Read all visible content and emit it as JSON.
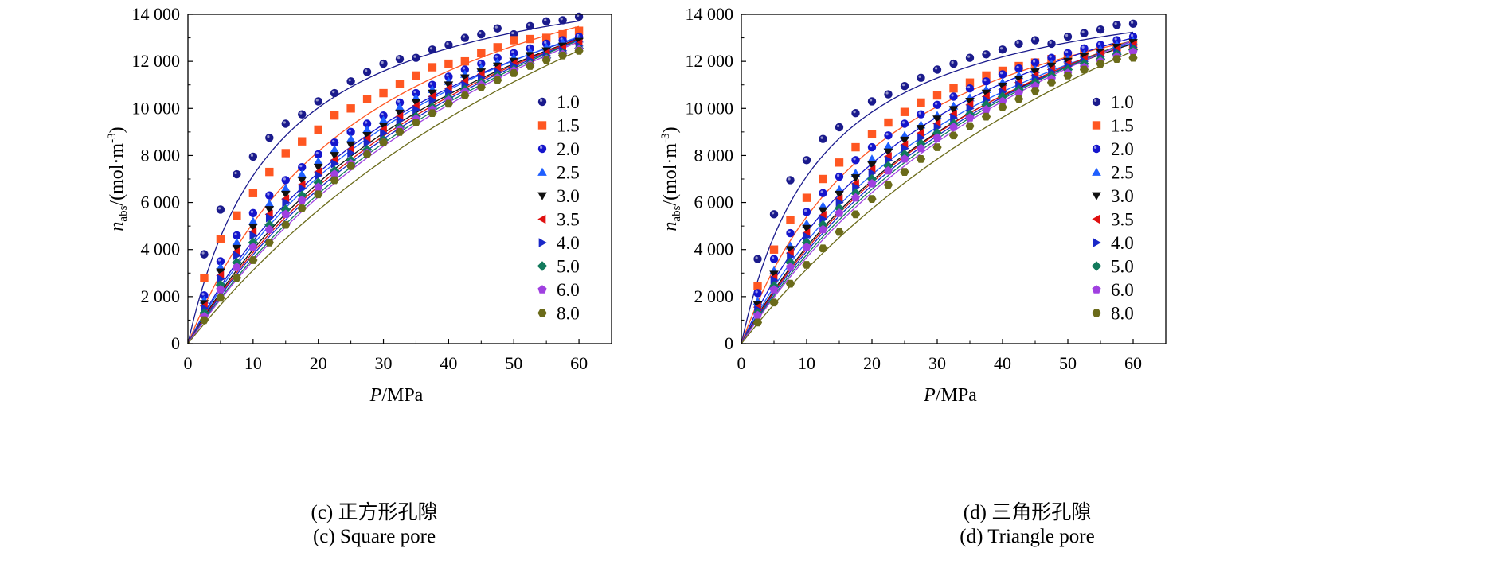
{
  "figure": {
    "left_panel": {
      "caption_zh": "(c) 正方形孔隙",
      "caption_en": "(c) Square pore"
    },
    "right_panel": {
      "caption_zh": "(d) 三角形孔隙",
      "caption_en": "(d) Triangle pore"
    }
  },
  "chart_data": [
    {
      "type": "scatter",
      "panel": "(c) Square pore",
      "xlabel": "P/MPa",
      "ylabel": "n_abs/(mol·m^-3)",
      "xlim": [
        0,
        65
      ],
      "ylim": [
        0,
        14000
      ],
      "x_ticks": [
        0,
        10,
        20,
        30,
        40,
        50,
        60
      ],
      "x_tick_labels": [
        "0",
        "10",
        "20",
        "30",
        "40",
        "50",
        "60"
      ],
      "y_ticks": [
        0,
        2000,
        4000,
        6000,
        8000,
        10000,
        12000,
        14000
      ],
      "y_tick_labels": [
        "0",
        "2 000",
        "4 000",
        "6 000",
        "8 000",
        "10 000",
        "12 000",
        "14 000"
      ],
      "grid": false,
      "legend_position": "right",
      "x": [
        2.5,
        5,
        7.5,
        10,
        12.5,
        15,
        17.5,
        20,
        22.5,
        25,
        27.5,
        30,
        32.5,
        35,
        37.5,
        40,
        42.5,
        45,
        47.5,
        50,
        52.5,
        55,
        57.5,
        60
      ],
      "series": [
        {
          "name": "1.0",
          "color": "#1a1a8c",
          "marker": "circle",
          "values": [
            3800,
            5700,
            7200,
            7950,
            8750,
            9350,
            9750,
            10300,
            10650,
            11150,
            11550,
            11900,
            12100,
            12150,
            12500,
            12700,
            13000,
            13150,
            13400,
            13150,
            13500,
            13700,
            13750,
            13900
          ],
          "fit": {
            "qmax": 16800,
            "b": 0.074
          }
        },
        {
          "name": "1.5",
          "color": "#ff5722",
          "marker": "square",
          "values": [
            2800,
            4450,
            5450,
            6400,
            7300,
            8100,
            8600,
            9100,
            9700,
            10000,
            10400,
            10650,
            11050,
            11400,
            11750,
            11900,
            12000,
            12350,
            12600,
            12900,
            12950,
            13000,
            13150,
            13300
          ],
          "fit": {
            "qmax": 20000,
            "b": 0.0345
          }
        },
        {
          "name": "2.0",
          "color": "#1515cc",
          "marker": "circle",
          "values": [
            2050,
            3500,
            4600,
            5550,
            6300,
            6950,
            7500,
            8050,
            8550,
            9000,
            9350,
            9700,
            10250,
            10650,
            11000,
            11350,
            11650,
            11900,
            12150,
            12350,
            12550,
            12750,
            12900,
            13050
          ],
          "fit": {
            "qmax": 21500,
            "b": 0.0255
          }
        },
        {
          "name": "2.5",
          "color": "#1f5fff",
          "marker": "triangle-up",
          "values": [
            1850,
            3250,
            4300,
            5200,
            5950,
            6600,
            7200,
            7750,
            8250,
            8700,
            9100,
            9500,
            10050,
            10450,
            10800,
            11150,
            11450,
            11700,
            11950,
            12150,
            12400,
            12600,
            12800,
            12950
          ],
          "fit": {
            "qmax": 22500,
            "b": 0.023
          }
        },
        {
          "name": "3.0",
          "color": "#111111",
          "marker": "triangle-down",
          "values": [
            1700,
            3050,
            4050,
            4950,
            5700,
            6350,
            6950,
            7500,
            8000,
            8450,
            8850,
            9250,
            9800,
            10250,
            10650,
            11000,
            11300,
            11550,
            11800,
            12000,
            12250,
            12450,
            12650,
            12850
          ],
          "fit": {
            "qmax": 23500,
            "b": 0.0205
          }
        },
        {
          "name": "3.5",
          "color": "#e01010",
          "marker": "triangle-left",
          "values": [
            1600,
            2900,
            3900,
            4750,
            5500,
            6150,
            6750,
            7300,
            7800,
            8250,
            8700,
            9100,
            9650,
            10100,
            10500,
            10850,
            11150,
            11450,
            11700,
            11900,
            12150,
            12350,
            12550,
            12750
          ],
          "fit": {
            "qmax": 24300,
            "b": 0.019
          }
        },
        {
          "name": "4.0",
          "color": "#1a28c8",
          "marker": "triangle-right",
          "values": [
            1500,
            2750,
            3750,
            4600,
            5350,
            6000,
            6600,
            7150,
            7650,
            8100,
            8550,
            8950,
            9500,
            9950,
            10350,
            10700,
            11000,
            11300,
            11550,
            11800,
            12050,
            12250,
            12450,
            12650
          ],
          "fit": {
            "qmax": 25000,
            "b": 0.0178
          }
        },
        {
          "name": "5.0",
          "color": "#127a5c",
          "marker": "diamond",
          "values": [
            1300,
            2500,
            3450,
            4300,
            5050,
            5700,
            6300,
            6850,
            7350,
            7800,
            8250,
            8650,
            9200,
            9650,
            10050,
            10450,
            10800,
            11100,
            11400,
            11650,
            11900,
            12150,
            12350,
            12550
          ],
          "fit": {
            "qmax": 26500,
            "b": 0.0158
          }
        },
        {
          "name": "6.0",
          "color": "#a040e0",
          "marker": "pentagon",
          "values": [
            1150,
            2300,
            3250,
            4100,
            4850,
            5500,
            6100,
            6650,
            7200,
            7650,
            8100,
            8550,
            9100,
            9550,
            9950,
            10350,
            10700,
            11000,
            11300,
            11600,
            11850,
            12100,
            12300,
            12500
          ],
          "fit": {
            "qmax": 27300,
            "b": 0.0148
          }
        },
        {
          "name": "8.0",
          "color": "#6b6b1a",
          "marker": "hexagon",
          "values": [
            1000,
            1950,
            2800,
            3550,
            4300,
            5050,
            5750,
            6350,
            6950,
            7550,
            8050,
            8550,
            9000,
            9400,
            9800,
            10200,
            10550,
            10900,
            11200,
            11500,
            11800,
            12050,
            12250,
            12450
          ],
          "fit": {
            "qmax": 31000,
            "b": 0.0112
          }
        }
      ]
    },
    {
      "type": "scatter",
      "panel": "(d) Triangle pore",
      "xlabel": "P/MPa",
      "ylabel": "n_abs/(mol·m^-3)",
      "xlim": [
        0,
        65
      ],
      "ylim": [
        0,
        14000
      ],
      "x_ticks": [
        0,
        10,
        20,
        30,
        40,
        50,
        60
      ],
      "x_tick_labels": [
        "0",
        "10",
        "20",
        "30",
        "40",
        "50",
        "60"
      ],
      "y_ticks": [
        0,
        2000,
        4000,
        6000,
        8000,
        10000,
        12000,
        14000
      ],
      "y_tick_labels": [
        "0",
        "2 000",
        "4 000",
        "6 000",
        "8 000",
        "10 000",
        "12 000",
        "14 000"
      ],
      "grid": false,
      "legend_position": "right",
      "x": [
        2.5,
        5,
        7.5,
        10,
        12.5,
        15,
        17.5,
        20,
        22.5,
        25,
        27.5,
        30,
        32.5,
        35,
        37.5,
        40,
        42.5,
        45,
        47.5,
        50,
        52.5,
        55,
        57.5,
        60
      ],
      "series": [
        {
          "name": "1.0",
          "color": "#1a1a8c",
          "marker": "circle",
          "values": [
            3600,
            5500,
            6950,
            7800,
            8700,
            9200,
            9800,
            10300,
            10600,
            10950,
            11300,
            11650,
            11900,
            12150,
            12300,
            12500,
            12750,
            12900,
            12750,
            13050,
            13200,
            13350,
            13550,
            13600
          ],
          "fit": {
            "qmax": 16000,
            "b": 0.08
          }
        },
        {
          "name": "1.5",
          "color": "#ff5722",
          "marker": "square",
          "values": [
            2450,
            4000,
            5250,
            6200,
            7000,
            7700,
            8350,
            8900,
            9400,
            9850,
            10250,
            10550,
            10850,
            11100,
            11400,
            11600,
            11800,
            11950,
            12100,
            12250,
            12350,
            12450,
            12600,
            12700
          ],
          "fit": {
            "qmax": 17800,
            "b": 0.0435
          }
        },
        {
          "name": "2.0",
          "color": "#1515cc",
          "marker": "circle",
          "values": [
            2150,
            3600,
            4700,
            5600,
            6400,
            7100,
            7800,
            8350,
            8850,
            9350,
            9750,
            10150,
            10500,
            10850,
            11150,
            11450,
            11700,
            11950,
            12150,
            12350,
            12550,
            12700,
            12900,
            13050
          ],
          "fit": {
            "qmax": 20000,
            "b": 0.031
          }
        },
        {
          "name": "2.5",
          "color": "#1f5fff",
          "marker": "triangle-up",
          "values": [
            1800,
            3100,
            4150,
            5100,
            5850,
            6550,
            7250,
            7850,
            8400,
            8850,
            9300,
            9700,
            10100,
            10450,
            10800,
            11100,
            11400,
            11650,
            11900,
            12100,
            12300,
            12500,
            12700,
            12850
          ],
          "fit": {
            "qmax": 21000,
            "b": 0.026
          }
        },
        {
          "name": "3.0",
          "color": "#111111",
          "marker": "triangle-down",
          "values": [
            1650,
            2950,
            4000,
            4900,
            5650,
            6350,
            7050,
            7600,
            8150,
            8650,
            9150,
            9550,
            9950,
            10300,
            10650,
            10950,
            11250,
            11550,
            11800,
            12000,
            12200,
            12400,
            12600,
            12800
          ],
          "fit": {
            "qmax": 22000,
            "b": 0.023
          }
        },
        {
          "name": "3.5",
          "color": "#e01010",
          "marker": "triangle-left",
          "values": [
            1550,
            2800,
            3850,
            4700,
            5450,
            6150,
            6800,
            7400,
            7950,
            8450,
            8950,
            9350,
            9750,
            10150,
            10500,
            10800,
            11100,
            11400,
            11650,
            11900,
            12100,
            12300,
            12500,
            12700
          ],
          "fit": {
            "qmax": 23000,
            "b": 0.0212
          }
        },
        {
          "name": "4.0",
          "color": "#1a28c8",
          "marker": "triangle-right",
          "values": [
            1450,
            2700,
            3700,
            4550,
            5300,
            6000,
            6650,
            7250,
            7800,
            8300,
            8750,
            9200,
            9600,
            10000,
            10350,
            10700,
            11000,
            11300,
            11550,
            11800,
            12000,
            12200,
            12400,
            12600
          ],
          "fit": {
            "qmax": 23700,
            "b": 0.0198
          }
        },
        {
          "name": "5.0",
          "color": "#127a5c",
          "marker": "diamond",
          "values": [
            1300,
            2450,
            3450,
            4300,
            5050,
            5750,
            6400,
            7000,
            7550,
            8050,
            8500,
            8950,
            9350,
            9750,
            10150,
            10500,
            10800,
            11100,
            11400,
            11650,
            11900,
            12100,
            12300,
            12500
          ],
          "fit": {
            "qmax": 25000,
            "b": 0.0178
          }
        },
        {
          "name": "6.0",
          "color": "#a040e0",
          "marker": "pentagon",
          "values": [
            1200,
            2300,
            3250,
            4100,
            4850,
            5550,
            6200,
            6800,
            7350,
            7850,
            8300,
            8750,
            9200,
            9600,
            9950,
            10300,
            10650,
            10950,
            11250,
            11500,
            11750,
            12000,
            12200,
            12400
          ],
          "fit": {
            "qmax": 26000,
            "b": 0.0164
          }
        },
        {
          "name": "8.0",
          "color": "#6b6b1a",
          "marker": "hexagon",
          "values": [
            900,
            1750,
            2550,
            3350,
            4050,
            4750,
            5500,
            6150,
            6750,
            7300,
            7850,
            8350,
            8850,
            9250,
            9650,
            10050,
            10400,
            10750,
            11100,
            11400,
            11650,
            11900,
            12100,
            12150
          ],
          "fit": {
            "qmax": 30000,
            "b": 0.0118
          }
        }
      ]
    }
  ]
}
